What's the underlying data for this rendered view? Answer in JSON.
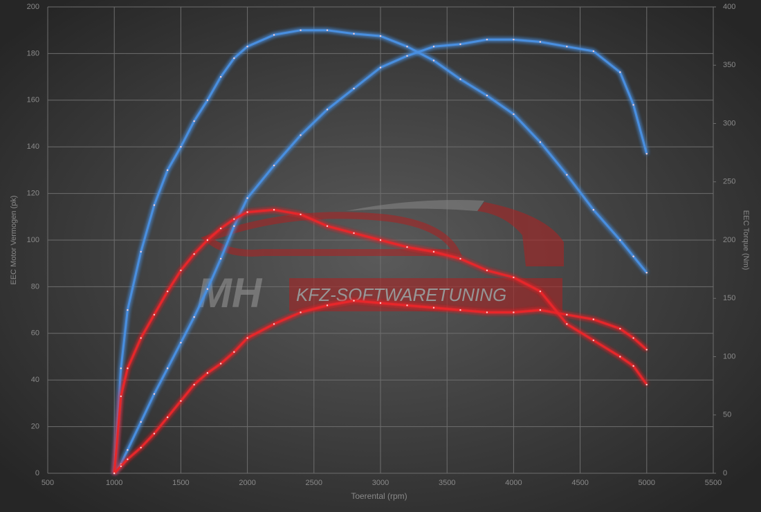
{
  "chart_data": {
    "type": "line",
    "xlabel": "Toerental (rpm)",
    "ylabel": "EEC Motor Vermogen (pk)",
    "y2label": "EEC Torque (Nm)",
    "annotations": [
      "MH",
      "KFZ-SOFTWARETUNING"
    ],
    "x": [
      1000,
      1050,
      1100,
      1200,
      1300,
      1400,
      1500,
      1600,
      1700,
      1800,
      1900,
      2000,
      2200,
      2400,
      2600,
      2800,
      3000,
      3200,
      3400,
      3600,
      3800,
      4000,
      4200,
      4400,
      4600,
      4800,
      4900,
      5000
    ],
    "series": [
      {
        "color": "#4a8fe0",
        "values": [
          0,
          4,
          10,
          22,
          34,
          45,
          56,
          67,
          79,
          92,
          106,
          118,
          132,
          145,
          156,
          165,
          174,
          179,
          183,
          184,
          186,
          186,
          185,
          183,
          181,
          172,
          158,
          137
        ]
      },
      {
        "color": "#4a8fe0",
        "axis": "y2",
        "values": [
          0,
          90,
          140,
          190,
          230,
          260,
          280,
          302,
          320,
          340,
          356,
          366,
          376,
          380,
          380,
          377,
          375,
          366,
          354,
          338,
          324,
          308,
          284,
          256,
          226,
          200,
          186,
          172
        ]
      },
      {
        "color": "#e8262a",
        "values": [
          0,
          3,
          6,
          11,
          17,
          24,
          31,
          38,
          43,
          47,
          52,
          58,
          64,
          69,
          72,
          74,
          73,
          72,
          71,
          70,
          69,
          69,
          70,
          68,
          66,
          62,
          58,
          53
        ]
      },
      {
        "color": "#e8262a",
        "axis": "y2",
        "values": [
          0,
          66,
          90,
          116,
          136,
          156,
          174,
          188,
          200,
          210,
          218,
          224,
          226,
          222,
          212,
          206,
          200,
          194,
          190,
          184,
          174,
          168,
          156,
          128,
          114,
          100,
          92,
          76
        ]
      }
    ],
    "xlim": [
      500,
      5500
    ],
    "xticks": [
      500,
      1000,
      1500,
      2000,
      2500,
      3000,
      3500,
      4000,
      4500,
      5000,
      5500
    ],
    "ylim": [
      0,
      200
    ],
    "yticks": [
      0,
      20,
      40,
      60,
      80,
      100,
      120,
      140,
      160,
      180,
      200
    ],
    "y2lim": [
      0,
      400
    ],
    "y2ticks": [
      0,
      50,
      100,
      150,
      200,
      250,
      300,
      350,
      400
    ],
    "grid": true
  }
}
